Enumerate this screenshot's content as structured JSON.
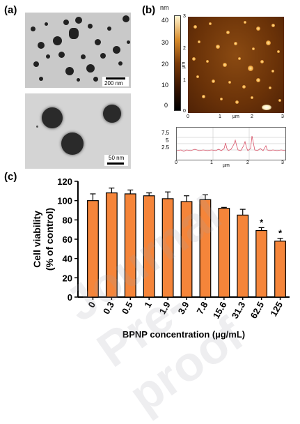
{
  "panels": {
    "a_label": "(a)",
    "b_label": "(b)",
    "c_label": "(c)"
  },
  "tem": {
    "top_scale": "200 nm",
    "bottom_scale": "50 nm"
  },
  "afm": {
    "colorbar_unit": "nm",
    "colorbar_ticks": [
      "40",
      "30",
      "20",
      "10",
      "0"
    ],
    "axis_unit": "µm",
    "x_ticks": [
      "0",
      "1",
      "2",
      "3"
    ],
    "y_ticks": [
      "3",
      "2",
      "1",
      "0"
    ],
    "profile_y_ticks": [
      "7.5",
      "5",
      "2.5"
    ],
    "profile_x_ticks": [
      "0",
      "1",
      "2",
      "3"
    ],
    "profile_x_unit": "µm"
  },
  "watermark": "Journal Pre-proof",
  "chart_data": {
    "type": "bar",
    "categories": [
      "0",
      "0.3",
      "0.5",
      "1",
      "1.9",
      "3.9",
      "7.8",
      "15.6",
      "31.3",
      "62.5",
      "125"
    ],
    "values": [
      100,
      108,
      107,
      105,
      102,
      99,
      101,
      92,
      85,
      69,
      58
    ],
    "errors": [
      7,
      5,
      4,
      3,
      7,
      6,
      5,
      1,
      6,
      3,
      3
    ],
    "significant": [
      false,
      false,
      false,
      false,
      false,
      false,
      false,
      false,
      false,
      true,
      true
    ],
    "annotation": "*",
    "xlabel": "BPNP concentration (µg/mL)",
    "ylabel": "Cell viability (% of control)",
    "ylabel_line1": "Cell viability",
    "ylabel_line2": "(% of control)",
    "ylim": [
      0,
      120
    ],
    "yticks": [
      "0",
      "20",
      "40",
      "60",
      "80",
      "100",
      "120"
    ],
    "bar_color": "#f5853a"
  }
}
